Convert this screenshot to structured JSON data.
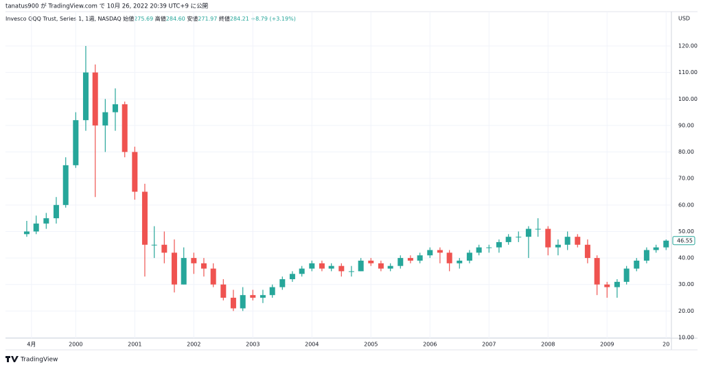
{
  "chart_data": {
    "type": "candlestick",
    "header": "tanatus900 が TradingView.com で 10月 26, 2022 20:39 UTC+9 に公開",
    "legend": {
      "symbol": "Invesco QQQ Trust, Series 1, 1週, NASDAQ",
      "open_label": "始値",
      "open": 275.69,
      "high_label": "高値",
      "high": 284.6,
      "high_text": "284.60",
      "low_label": "安値",
      "low": 271.97,
      "close_label": "終値",
      "close": 284.21,
      "change": "+8.79 (+3.19%)"
    },
    "currency": "USD",
    "brand": "TradingView",
    "up_color": "#26a69a",
    "down_color": "#ef5350",
    "grid": true,
    "x": [
      1999.17,
      1999.33,
      1999.5,
      1999.67,
      1999.83,
      2000,
      2000.17,
      2000.33,
      2000.5,
      2000.67,
      2000.83,
      2001,
      2001.17,
      2001.33,
      2001.5,
      2001.67,
      2001.83,
      2002,
      2002.17,
      2002.33,
      2002.5,
      2002.67,
      2002.83,
      2003,
      2003.17,
      2003.33,
      2003.5,
      2003.67,
      2003.83,
      2004,
      2004.17,
      2004.33,
      2004.5,
      2004.67,
      2004.83,
      2005,
      2005.17,
      2005.33,
      2005.5,
      2005.67,
      2005.83,
      2006,
      2006.17,
      2006.33,
      2006.5,
      2006.67,
      2006.83,
      2007,
      2007.17,
      2007.33,
      2007.5,
      2007.67,
      2007.83,
      2008,
      2008.17,
      2008.33,
      2008.5,
      2008.67,
      2008.83,
      2009,
      2009.17,
      2009.33,
      2009.5,
      2009.67,
      2009.83,
      2010
    ],
    "open": [
      49,
      50,
      53,
      55,
      60,
      75,
      92,
      110,
      90,
      95,
      98,
      80,
      65,
      45,
      45,
      42,
      30,
      40,
      38,
      36,
      30,
      25,
      21,
      26,
      25,
      26,
      29,
      32,
      34,
      36,
      38,
      36,
      37,
      35,
      35,
      39,
      38,
      36,
      37,
      40,
      39,
      41,
      43,
      42,
      38,
      39,
      42,
      44,
      44,
      46,
      48,
      48,
      51,
      51,
      44,
      45,
      48,
      45,
      40,
      30,
      29,
      31,
      36,
      39,
      43,
      44
    ],
    "high": [
      54,
      56,
      57,
      63,
      78,
      95,
      120,
      113,
      100,
      104,
      99,
      82,
      68,
      52,
      50,
      47,
      44,
      42,
      40,
      38,
      32,
      28,
      29,
      28,
      28,
      30,
      33,
      35,
      37,
      39,
      39,
      38,
      38,
      37,
      40,
      40,
      39,
      38,
      41,
      41,
      42,
      44,
      44,
      43,
      40,
      43,
      45,
      45,
      47,
      49,
      50,
      52,
      55,
      52,
      47,
      50,
      49,
      47,
      41,
      31,
      32,
      37,
      40,
      44,
      45,
      47
    ],
    "low": [
      48,
      49,
      51,
      53,
      59,
      74,
      88,
      63,
      80,
      88,
      78,
      62,
      33,
      40,
      38,
      27,
      30,
      34,
      33,
      29,
      24,
      20,
      20,
      24,
      23,
      25,
      28,
      31,
      33,
      35,
      35,
      35,
      33,
      33,
      35,
      37,
      35,
      35,
      36,
      38,
      38,
      40,
      38,
      35,
      36,
      38,
      41,
      42,
      42,
      45,
      46,
      40,
      48,
      41,
      41,
      43,
      44,
      38,
      26,
      25,
      25,
      30,
      35,
      38,
      42,
      43
    ],
    "close": [
      50,
      53,
      55,
      60,
      75,
      92,
      110,
      90,
      95,
      98,
      80,
      65,
      45,
      45,
      42,
      30,
      40,
      38,
      36,
      30,
      25,
      21,
      26,
      25,
      26,
      29,
      32,
      34,
      36,
      38,
      36,
      37,
      35,
      35,
      39,
      38,
      36,
      37,
      40,
      39,
      41,
      43,
      42,
      38,
      39,
      42,
      44,
      44,
      46,
      48,
      48,
      51,
      51,
      44,
      45,
      48,
      45,
      40,
      30,
      29,
      31,
      36,
      39,
      43,
      44,
      46.55
    ],
    "xlim": [
      1998.81,
      2010.09
    ],
    "xticks": [
      {
        "value": 1999.25,
        "label": "4月"
      },
      2000,
      2001,
      2002,
      2003,
      2004,
      2005,
      2006,
      2007,
      2008,
      2009,
      {
        "value": 2010,
        "label": "20"
      }
    ],
    "ylim": [
      10,
      120
    ],
    "yticks": [
      {
        "value": 10,
        "label": "10.00"
      },
      {
        "value": 20,
        "label": "20.00"
      },
      {
        "value": 30,
        "label": "30.00"
      },
      {
        "value": 40,
        "label": "40.00"
      },
      {
        "value": 50,
        "label": "50.00"
      },
      {
        "value": 60,
        "label": "60.00"
      },
      {
        "value": 70,
        "label": "70.00"
      },
      {
        "value": 80,
        "label": "80.00"
      },
      {
        "value": 90,
        "label": "90.00"
      },
      {
        "value": 100,
        "label": "100.00"
      },
      {
        "value": 110,
        "label": "110.00"
      },
      {
        "value": 120,
        "label": "120.00"
      }
    ]
  }
}
